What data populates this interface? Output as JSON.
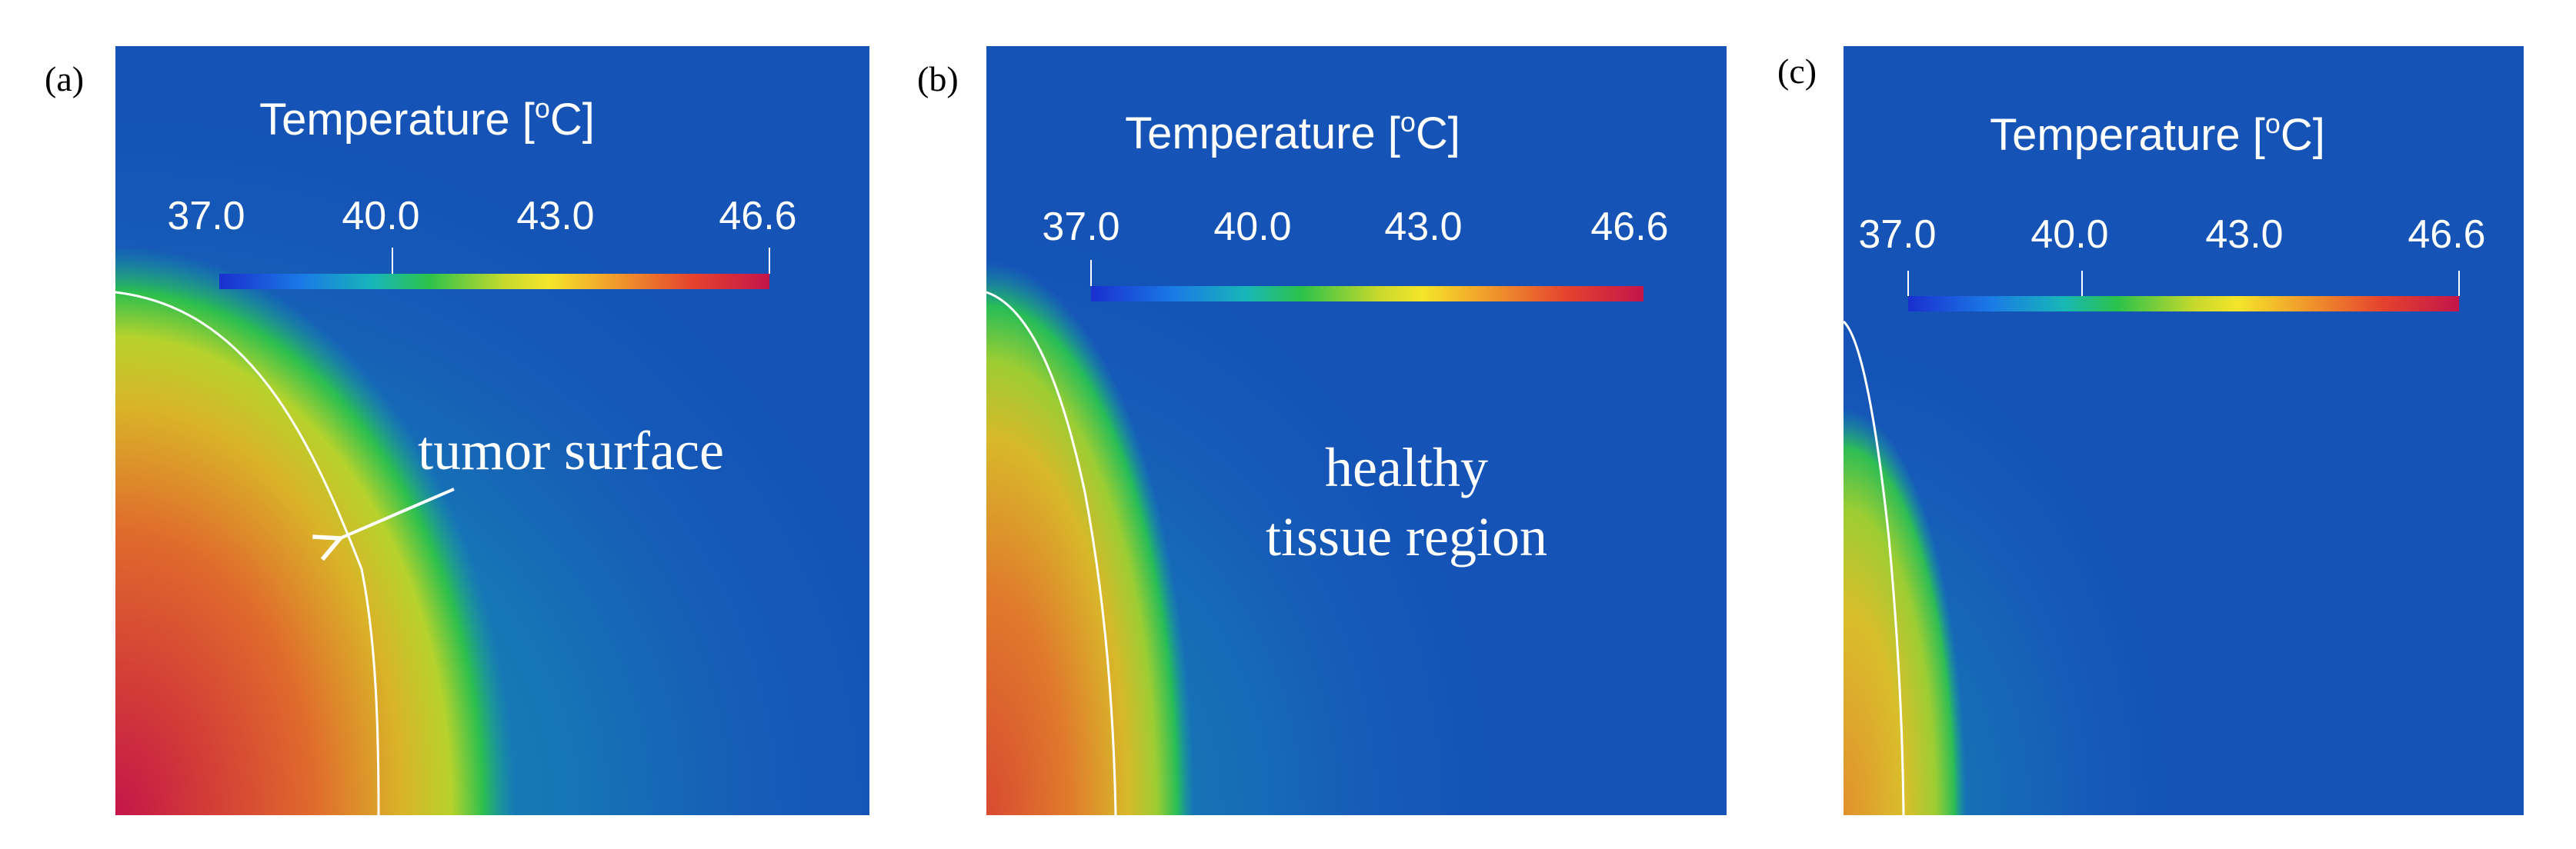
{
  "colors": {
    "background": "#1553b7",
    "colormap": [
      "#1a2fcf",
      "#1a7ae6",
      "#17b6b8",
      "#2bc24a",
      "#c7d92c",
      "#f5e52a",
      "#f09a2b",
      "#e5432e",
      "#c4154a"
    ],
    "boundary": "#ffffff"
  },
  "figure": {
    "panels": [
      {
        "id": "a",
        "label": "(a)",
        "colorbar": {
          "title": "Temperature [",
          "title_sup": "o",
          "title_end": "C]",
          "min": 37.0,
          "max": 46.6,
          "ticks": [
            "37.0",
            "40.0",
            "43.0",
            "46.6"
          ],
          "tick_values": [
            37.0,
            40.0,
            43.0,
            46.6
          ]
        },
        "max_temperature": 46.6,
        "tumor_boundary_extent": 0.35,
        "annotation": {
          "text": "tumor surface"
        }
      },
      {
        "id": "b",
        "label": "(b)",
        "colorbar": {
          "title": "Temperature [",
          "title_sup": "o",
          "title_end": "C]",
          "min": 37.0,
          "max": 46.6,
          "ticks": [
            "37.0",
            "40.0",
            "43.0",
            "46.6"
          ],
          "tick_values": [
            37.0,
            40.0,
            43.0,
            46.6
          ]
        },
        "max_temperature": 45.5,
        "tumor_boundary_extent": 0.18,
        "annotation": {
          "line1": "healthy",
          "line2": "tissue region"
        }
      },
      {
        "id": "c",
        "label": "(c)",
        "colorbar": {
          "title": "Temperature [",
          "title_sup": "o",
          "title_end": "C]",
          "min": 37.0,
          "max": 46.6,
          "ticks": [
            "37.0",
            "40.0",
            "43.0",
            "46.6"
          ],
          "tick_values": [
            37.0,
            40.0,
            43.0,
            46.6
          ]
        },
        "max_temperature": 44.0,
        "tumor_boundary_extent": 0.09
      }
    ]
  }
}
